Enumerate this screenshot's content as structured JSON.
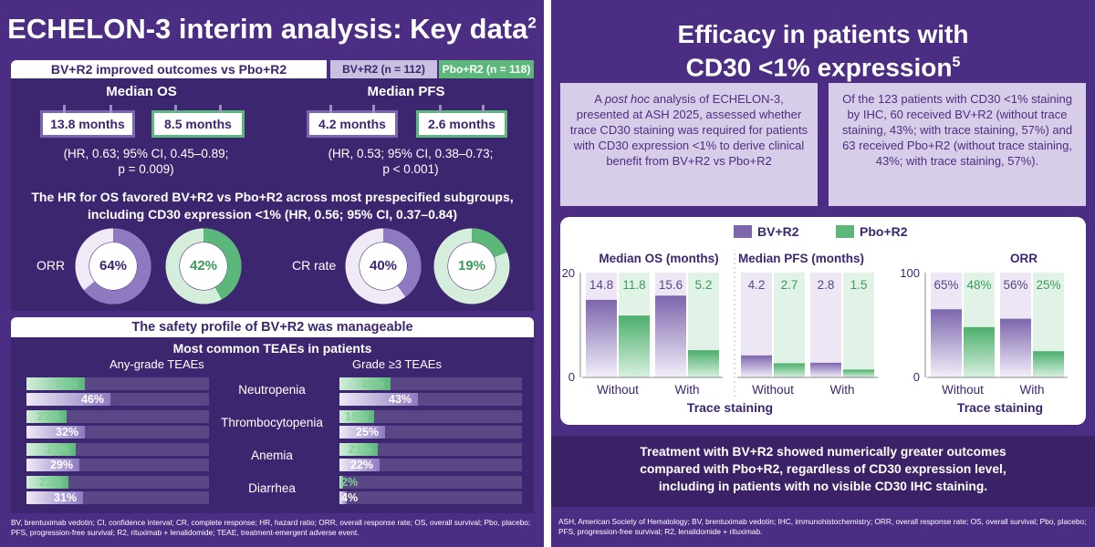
{
  "left": {
    "title_main": "ECHELON-3 interim analysis: Key data",
    "title_ref": "2",
    "header": {
      "main": "BV+R2 improved outcomes vs Pbo+R2",
      "bv_arm": "BV+R2 (n = 112)",
      "pbo_arm": "Pbo+R2 (n = 118)"
    },
    "median_os": {
      "label": "Median OS",
      "bv": "13.8 months",
      "pbo": "8.5 months",
      "hr_line1": "(HR, 0.63; 95% CI, 0.45–0.89;",
      "hr_line2": "p = 0.009)"
    },
    "median_pfs": {
      "label": "Median PFS",
      "bv": "4.2 months",
      "pbo": "2.6 months",
      "hr_line1": "(HR, 0.53; 95% CI, 0.38–0.73;",
      "hr_line2": "p < 0.001)"
    },
    "subgroup_line1": "The HR for OS favored BV+R2 vs Pbo+R2 across most prespecified subgroups,",
    "subgroup_line2": "including CD30 expression <1% (HR, 0.56; 95% CI, 0.37–0.84)",
    "responses": [
      {
        "label": "ORR",
        "bv": 64,
        "bv_text": "64%",
        "pbo": 42,
        "pbo_text": "42%"
      },
      {
        "label": "CR rate",
        "bv": 40,
        "bv_text": "40%",
        "pbo": 19,
        "pbo_text": "19%"
      }
    ],
    "safety_header": "The safety profile of BV+R2 was manageable",
    "teae_title": "Most common TEAEs in patients",
    "any_grade_label": "Any-grade TEAEs",
    "grade3_label": "Grade ≥3 TEAEs",
    "teaes": [
      {
        "name": "Neutropenia",
        "any_pbo": 32,
        "any_pbo_text": "32%",
        "any_bv": 46,
        "any_bv_text": "46%",
        "g3_pbo": 28,
        "g3_pbo_text": "28%",
        "g3_bv": 43,
        "g3_bv_text": "43%"
      },
      {
        "name": "Thrombocytopenia",
        "any_pbo": 22,
        "any_pbo_text": "22%",
        "any_bv": 32,
        "any_bv_text": "32%",
        "g3_pbo": 19,
        "g3_pbo_text": "19%",
        "g3_bv": 25,
        "g3_bv_text": "25%"
      },
      {
        "name": "Anemia",
        "any_pbo": 27,
        "any_pbo_text": "27%",
        "any_bv": 29,
        "any_bv_text": "29%",
        "g3_pbo": 21,
        "g3_pbo_text": "21%",
        "g3_bv": 22,
        "g3_bv_text": "22%"
      },
      {
        "name": "Diarrhea",
        "any_pbo": 23,
        "any_pbo_text": "23%",
        "any_bv": 31,
        "any_bv_text": "31%",
        "g3_pbo": 2,
        "g3_pbo_text": "2%",
        "g3_bv": 4,
        "g3_bv_text": "4%"
      }
    ],
    "footnote": "BV, brentuximab vedotin; CI, confidence interval; CR, complete response; HR, hazard ratio; ORR, overall response rate; OS, overall survival; Pbo, placebo; PFS, progression-free survival; R2, rituximab + lenalidomide; TEAE, treatment-emergent adverse event."
  },
  "right": {
    "title_line1": "Efficacy in patients with",
    "title_line2": "CD30 <1% expression",
    "title_ref": "5",
    "box1_pre": "A ",
    "box1_italic": "post hoc",
    "box1_post": " analysis of ECHELON-3, presented at ASH 2025, assessed whether trace CD30 staining was required for patients with CD30 expression <1% to derive clinical benefit from BV+R2 vs Pbo+R2",
    "box2": "Of the 123 patients with CD30 <1% staining by IHC, 60 received BV+R2 (without trace staining, 43%; with trace staining, 57%) and 63 received Pbo+R2 (without trace staining, 43%; with trace staining, 57%).",
    "conclusion_line1": "Treatment with BV+R2 showed numerically greater outcomes",
    "conclusion_line2": "compared with Pbo+R2, regardless of CD30 expression level,",
    "conclusion_line3": "including in patients with no visible CD30 IHC staining.",
    "footnote": "ASH, American Society of Hematology; BV, brentuximab vedotin; IHC, immunohistochemistry; ORR, overall response rate; OS, overall survival; Pbo, placebo; PFS, progression-free survival; R2, lenalidomide + rituximab."
  },
  "colors": {
    "bg_purple": "#4b2e83",
    "dark_purple": "#3d2670",
    "bv_purple": "#7c66ad",
    "pbo_green": "#5cb87a",
    "lavender": "#d7cde8"
  },
  "chart_data": {
    "type": "bar",
    "legend": [
      "BV+R2",
      "Pbo+R2"
    ],
    "legend_position": "top-center",
    "xlabel": "Trace staining",
    "categories": [
      "Without",
      "With"
    ],
    "panels": [
      {
        "title": "Median OS (months)",
        "ylim": [
          0,
          20
        ],
        "yticks": [
          "0",
          "20"
        ],
        "series": [
          {
            "name": "BV+R2",
            "values": [
              14.8,
              15.6
            ],
            "labels": [
              "14.8",
              "15.6"
            ]
          },
          {
            "name": "Pbo+R2",
            "values": [
              11.8,
              5.2
            ],
            "labels": [
              "11.8",
              "5.2"
            ]
          }
        ]
      },
      {
        "title": "Median PFS (months)",
        "ylim": [
          0,
          20
        ],
        "yticks": [],
        "series": [
          {
            "name": "BV+R2",
            "values": [
              4.2,
              2.8
            ],
            "labels": [
              "4.2",
              "2.8"
            ]
          },
          {
            "name": "Pbo+R2",
            "values": [
              2.7,
              1.5
            ],
            "labels": [
              "2.7",
              "1.5"
            ]
          }
        ]
      },
      {
        "title": "ORR",
        "ylim": [
          0,
          100
        ],
        "yticks": [
          "0",
          "100"
        ],
        "series": [
          {
            "name": "BV+R2",
            "values": [
              65,
              56
            ],
            "labels": [
              "65%",
              "56%"
            ]
          },
          {
            "name": "Pbo+R2",
            "values": [
              48,
              25
            ],
            "labels": [
              "48%",
              "25%"
            ]
          }
        ]
      }
    ]
  }
}
